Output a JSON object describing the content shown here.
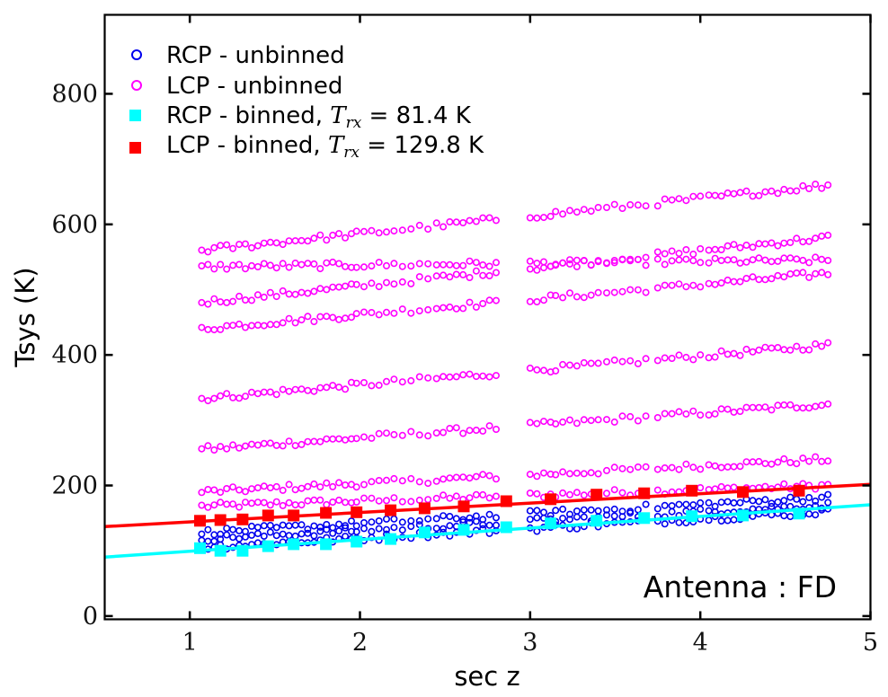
{
  "chart_data": {
    "type": "scatter",
    "title": "",
    "xlabel": "sec z",
    "ylabel": "Tsys (K)",
    "xlim": [
      0.5,
      5
    ],
    "ylim": [
      -5,
      921
    ],
    "xticks": [
      1,
      2,
      3,
      4,
      5
    ],
    "xtick_labels": [
      "1",
      "2",
      "3",
      "4",
      "5"
    ],
    "yticks": [
      0,
      200,
      400,
      600,
      800
    ],
    "ytick_labels": [
      "0",
      "200",
      "400",
      "600",
      "800"
    ],
    "grid": false,
    "legend_position": "top-left",
    "annotation": "Antenna : FD",
    "legend": [
      {
        "key": "rcp_unbinned",
        "label": "RCP - unbinned",
        "marker": "open-circle",
        "color": "#0000ee"
      },
      {
        "key": "lcp_unbinned",
        "label": "LCP - unbinned",
        "marker": "open-circle",
        "color": "#ff00ff"
      },
      {
        "key": "rcp_binned",
        "label_prefix": "RCP - binned, ",
        "math_var": "T",
        "math_sub": "rx",
        "label_suffix": " = 81.4 K",
        "marker": "filled-square",
        "color": "#00ffff"
      },
      {
        "key": "lcp_binned",
        "label_prefix": "LCP - binned, ",
        "math_var": "T",
        "math_sub": "rx",
        "label_suffix": " = 129.8 K",
        "marker": "filled-square",
        "color": "#ff0000"
      }
    ],
    "series": [
      {
        "name": "RCP - binned",
        "color": "#00ffff",
        "x": [
          1.06,
          1.18,
          1.31,
          1.46,
          1.61,
          1.8,
          1.98,
          2.18,
          2.38,
          2.61,
          2.86,
          3.12,
          3.39,
          3.67,
          3.95,
          4.25,
          4.58
        ],
        "y": [
          104,
          100,
          100,
          107,
          110,
          110,
          114,
          118,
          128,
          132,
          136,
          142,
          146,
          150,
          153,
          154,
          157
        ]
      },
      {
        "name": "LCP - binned",
        "color": "#ff0000",
        "x": [
          1.06,
          1.18,
          1.31,
          1.46,
          1.61,
          1.8,
          1.98,
          2.18,
          2.38,
          2.61,
          2.86,
          3.12,
          3.39,
          3.67,
          3.95,
          4.25,
          4.58
        ],
        "y": [
          146,
          147,
          148,
          154,
          154,
          158,
          159,
          162,
          165,
          168,
          176,
          179,
          186,
          188,
          192,
          190,
          192
        ]
      }
    ],
    "fits": [
      {
        "name": "RCP fit",
        "color": "#00ffff",
        "intercept": 81.4,
        "slope": 17.8
      },
      {
        "name": "LCP fit",
        "color": "#ff0000",
        "intercept": 129.8,
        "slope": 14.4
      }
    ],
    "unbinned_bands": {
      "x_segments": [
        [
          1.07,
          1.95
        ],
        [
          1.98,
          2.2
        ],
        [
          2.25,
          2.4
        ],
        [
          2.45,
          2.8
        ],
        [
          3.0,
          3.12
        ],
        [
          3.15,
          3.4
        ],
        [
          3.45,
          3.68
        ],
        [
          3.75,
          4.0
        ],
        [
          4.05,
          4.75
        ]
      ],
      "rcp": {
        "color": "#0000ee",
        "bands": [
          {
            "y_start": 105,
            "y_end": 160
          },
          {
            "y_start": 118,
            "y_end": 170
          },
          {
            "y_start": 128,
            "y_end": 182
          }
        ]
      },
      "lcp": {
        "color": "#ff00ff",
        "bands": [
          {
            "y_start": 168,
            "y_end": 200
          },
          {
            "y_start": 190,
            "y_end": 240
          },
          {
            "y_start": 255,
            "y_end": 325
          },
          {
            "y_start": 333,
            "y_end": 415
          },
          {
            "y_start": 440,
            "y_end": 525
          },
          {
            "y_start": 480,
            "y_end": 580
          },
          {
            "y_start": 535,
            "y_end": 545
          },
          {
            "y_start": 560,
            "y_end": 660
          }
        ]
      }
    }
  }
}
